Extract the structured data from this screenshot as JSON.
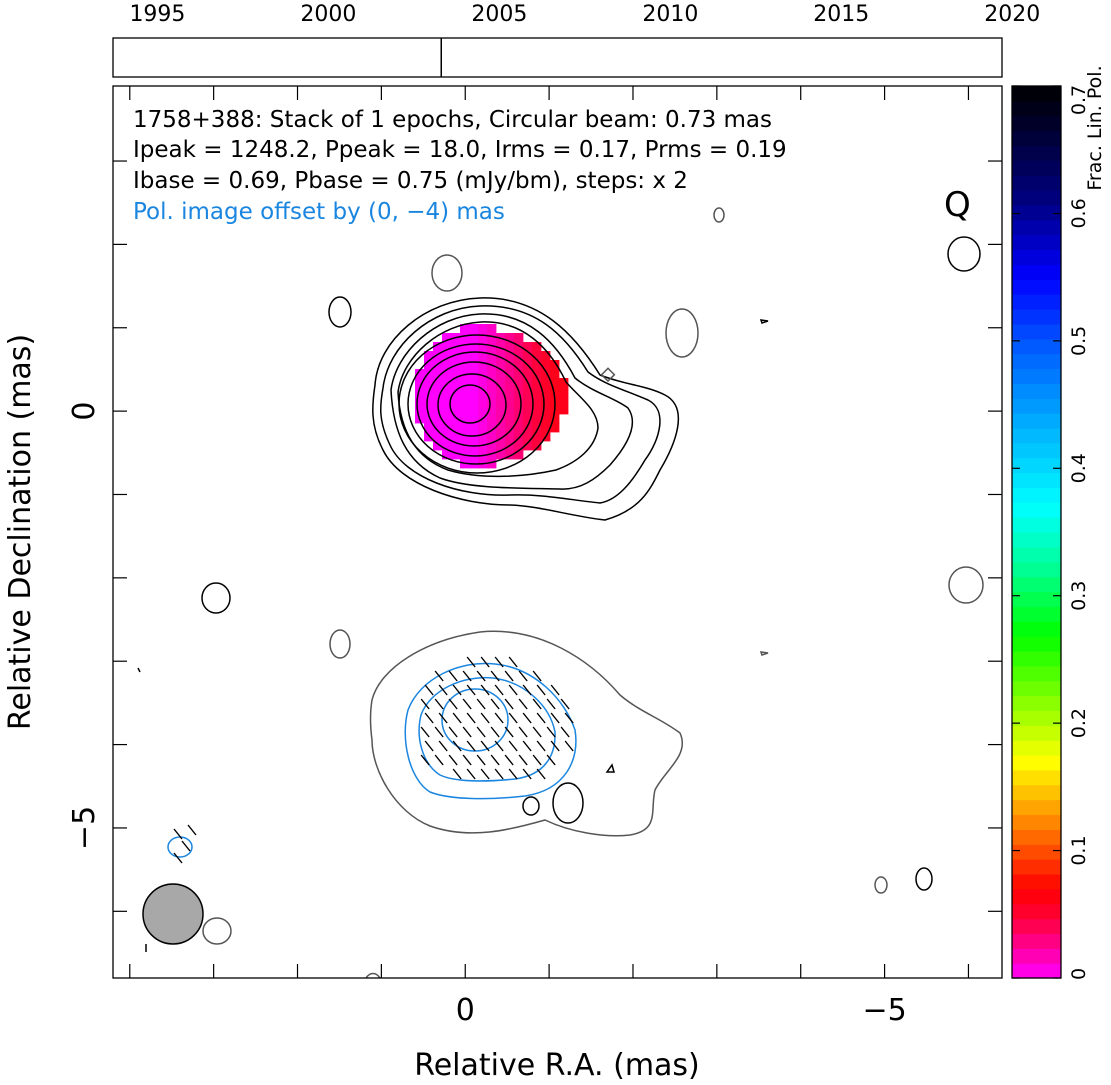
{
  "timeline": {
    "year_labels": [
      "1995",
      "2000",
      "2005",
      "2010",
      "2015",
      "2020"
    ],
    "year_ticks": [
      1995,
      2000,
      2005,
      2010,
      2015,
      2020
    ],
    "range": [
      1993.7,
      2019.7
    ],
    "epoch_years": [
      2003.3
    ]
  },
  "header": {
    "line1": "1758+388: Stack of 1 epochs, Circular beam: 0.73 mas",
    "line2": "Ipeak = 1248.2, Ppeak = 18.0, Irms = 0.17, Prms = 0.19",
    "line3": "Ibase = 0.69, Pbase = 0.75 (mJy/bm), steps: x 2",
    "line4": "Pol. image offset by (0, −4) mas",
    "badge": "Q"
  },
  "colors": {
    "total_intensity_contour": "#000000",
    "faint_contour": "#555555",
    "polarization_contour": "#1a86e0",
    "offset_note": "#1a86e0",
    "beam_fill": "#a8a8a8"
  },
  "chart_data": {
    "type": "heatmap",
    "xlabel": "Relative R.A. (mas)",
    "ylabel": "Relative Declination (mas)",
    "xlim": [
      4.2,
      -6.4
    ],
    "ylim": [
      -6.8,
      3.9
    ],
    "x_reversed": true,
    "x_tick_labels": [
      {
        "value": 0,
        "label": "0"
      },
      {
        "value": -5,
        "label": "−5"
      }
    ],
    "y_tick_labels": [
      {
        "value": 0,
        "label": "0"
      },
      {
        "value": -5,
        "label": "−5"
      }
    ],
    "x_minor_ticks": [
      4,
      3,
      2,
      1,
      0,
      -1,
      -2,
      -3,
      -4,
      -5,
      -6
    ],
    "y_minor_ticks": [
      3,
      2,
      1,
      0,
      -1,
      -2,
      -3,
      -4,
      -5,
      -6
    ],
    "beam_diameter_mas": 0.73,
    "contour_base_mJy_per_beam": 0.69,
    "contour_step_factor": 2,
    "polarization_offset_mas": [
      0,
      -4
    ],
    "colorbar": {
      "label": "Frac. Lin. Pol.",
      "range": [
        0,
        0.7
      ],
      "ticks": [
        {
          "value": 0,
          "label": "0"
        },
        {
          "value": 0.1,
          "label": "0.1"
        },
        {
          "value": 0.2,
          "label": "0.2"
        },
        {
          "value": 0.3,
          "label": "0.3"
        },
        {
          "value": 0.4,
          "label": "0.4"
        },
        {
          "value": 0.5,
          "label": "0.5"
        },
        {
          "value": 0.6,
          "label": "0.6"
        },
        {
          "value": 0.7,
          "label": "0.7"
        }
      ],
      "stops": [
        {
          "v": 0.0,
          "color": "#ff00ff"
        },
        {
          "v": 0.045,
          "color": "#ff0040"
        },
        {
          "v": 0.07,
          "color": "#ff0000"
        },
        {
          "v": 0.12,
          "color": "#ff8000"
        },
        {
          "v": 0.17,
          "color": "#ffff00"
        },
        {
          "v": 0.22,
          "color": "#80ff00"
        },
        {
          "v": 0.27,
          "color": "#00ff00"
        },
        {
          "v": 0.32,
          "color": "#00ff90"
        },
        {
          "v": 0.37,
          "color": "#00ffff"
        },
        {
          "v": 0.43,
          "color": "#00b4ff"
        },
        {
          "v": 0.49,
          "color": "#0064ff"
        },
        {
          "v": 0.55,
          "color": "#0000ff"
        },
        {
          "v": 0.61,
          "color": "#000080"
        },
        {
          "v": 0.7,
          "color": "#000000"
        }
      ]
    },
    "core_fractional_pol": {
      "min": 0.0,
      "max": 0.06
    }
  }
}
